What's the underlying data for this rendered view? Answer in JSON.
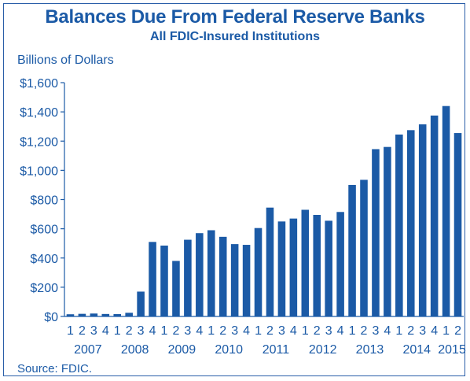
{
  "chart_data": {
    "type": "bar",
    "title": "Balances Due From Federal Reserve Banks",
    "subtitle": "All FDIC-Insured Institutions",
    "ylabel": "Billions of Dollars",
    "source": "Source: FDIC.",
    "ylim": [
      0,
      1600
    ],
    "yticks": [
      "$0",
      "$200",
      "$400",
      "$600",
      "$800",
      "$1,000",
      "$1,200",
      "$1,400",
      "$1,600"
    ],
    "ytick_values": [
      0,
      200,
      400,
      600,
      800,
      1000,
      1200,
      1400,
      1600
    ],
    "categories": [
      "1",
      "2",
      "3",
      "4",
      "1",
      "2",
      "3",
      "4",
      "1",
      "2",
      "3",
      "4",
      "1",
      "2",
      "3",
      "4",
      "1",
      "2",
      "3",
      "4",
      "1",
      "2",
      "3",
      "4",
      "1",
      "2",
      "3",
      "4",
      "1",
      "2",
      "3",
      "4",
      "1",
      "2"
    ],
    "years": [
      {
        "label": "2007",
        "start": 0,
        "count": 4
      },
      {
        "label": "2008",
        "start": 4,
        "count": 4
      },
      {
        "label": "2009",
        "start": 8,
        "count": 4
      },
      {
        "label": "2010",
        "start": 12,
        "count": 4
      },
      {
        "label": "2011",
        "start": 16,
        "count": 4
      },
      {
        "label": "2012",
        "start": 20,
        "count": 4
      },
      {
        "label": "2013",
        "start": 24,
        "count": 4
      },
      {
        "label": "2014",
        "start": 28,
        "count": 4
      },
      {
        "label": "2015",
        "start": 32,
        "count": 2
      }
    ],
    "values": [
      15,
      18,
      20,
      17,
      16,
      25,
      170,
      510,
      485,
      380,
      525,
      570,
      590,
      545,
      495,
      490,
      605,
      745,
      650,
      670,
      730,
      695,
      655,
      715,
      900,
      935,
      1145,
      1160,
      1245,
      1275,
      1315,
      1375,
      1440,
      1255
    ],
    "bar_color": "#1b5aa6",
    "text_color": "#1b5aa6",
    "grid": false
  }
}
